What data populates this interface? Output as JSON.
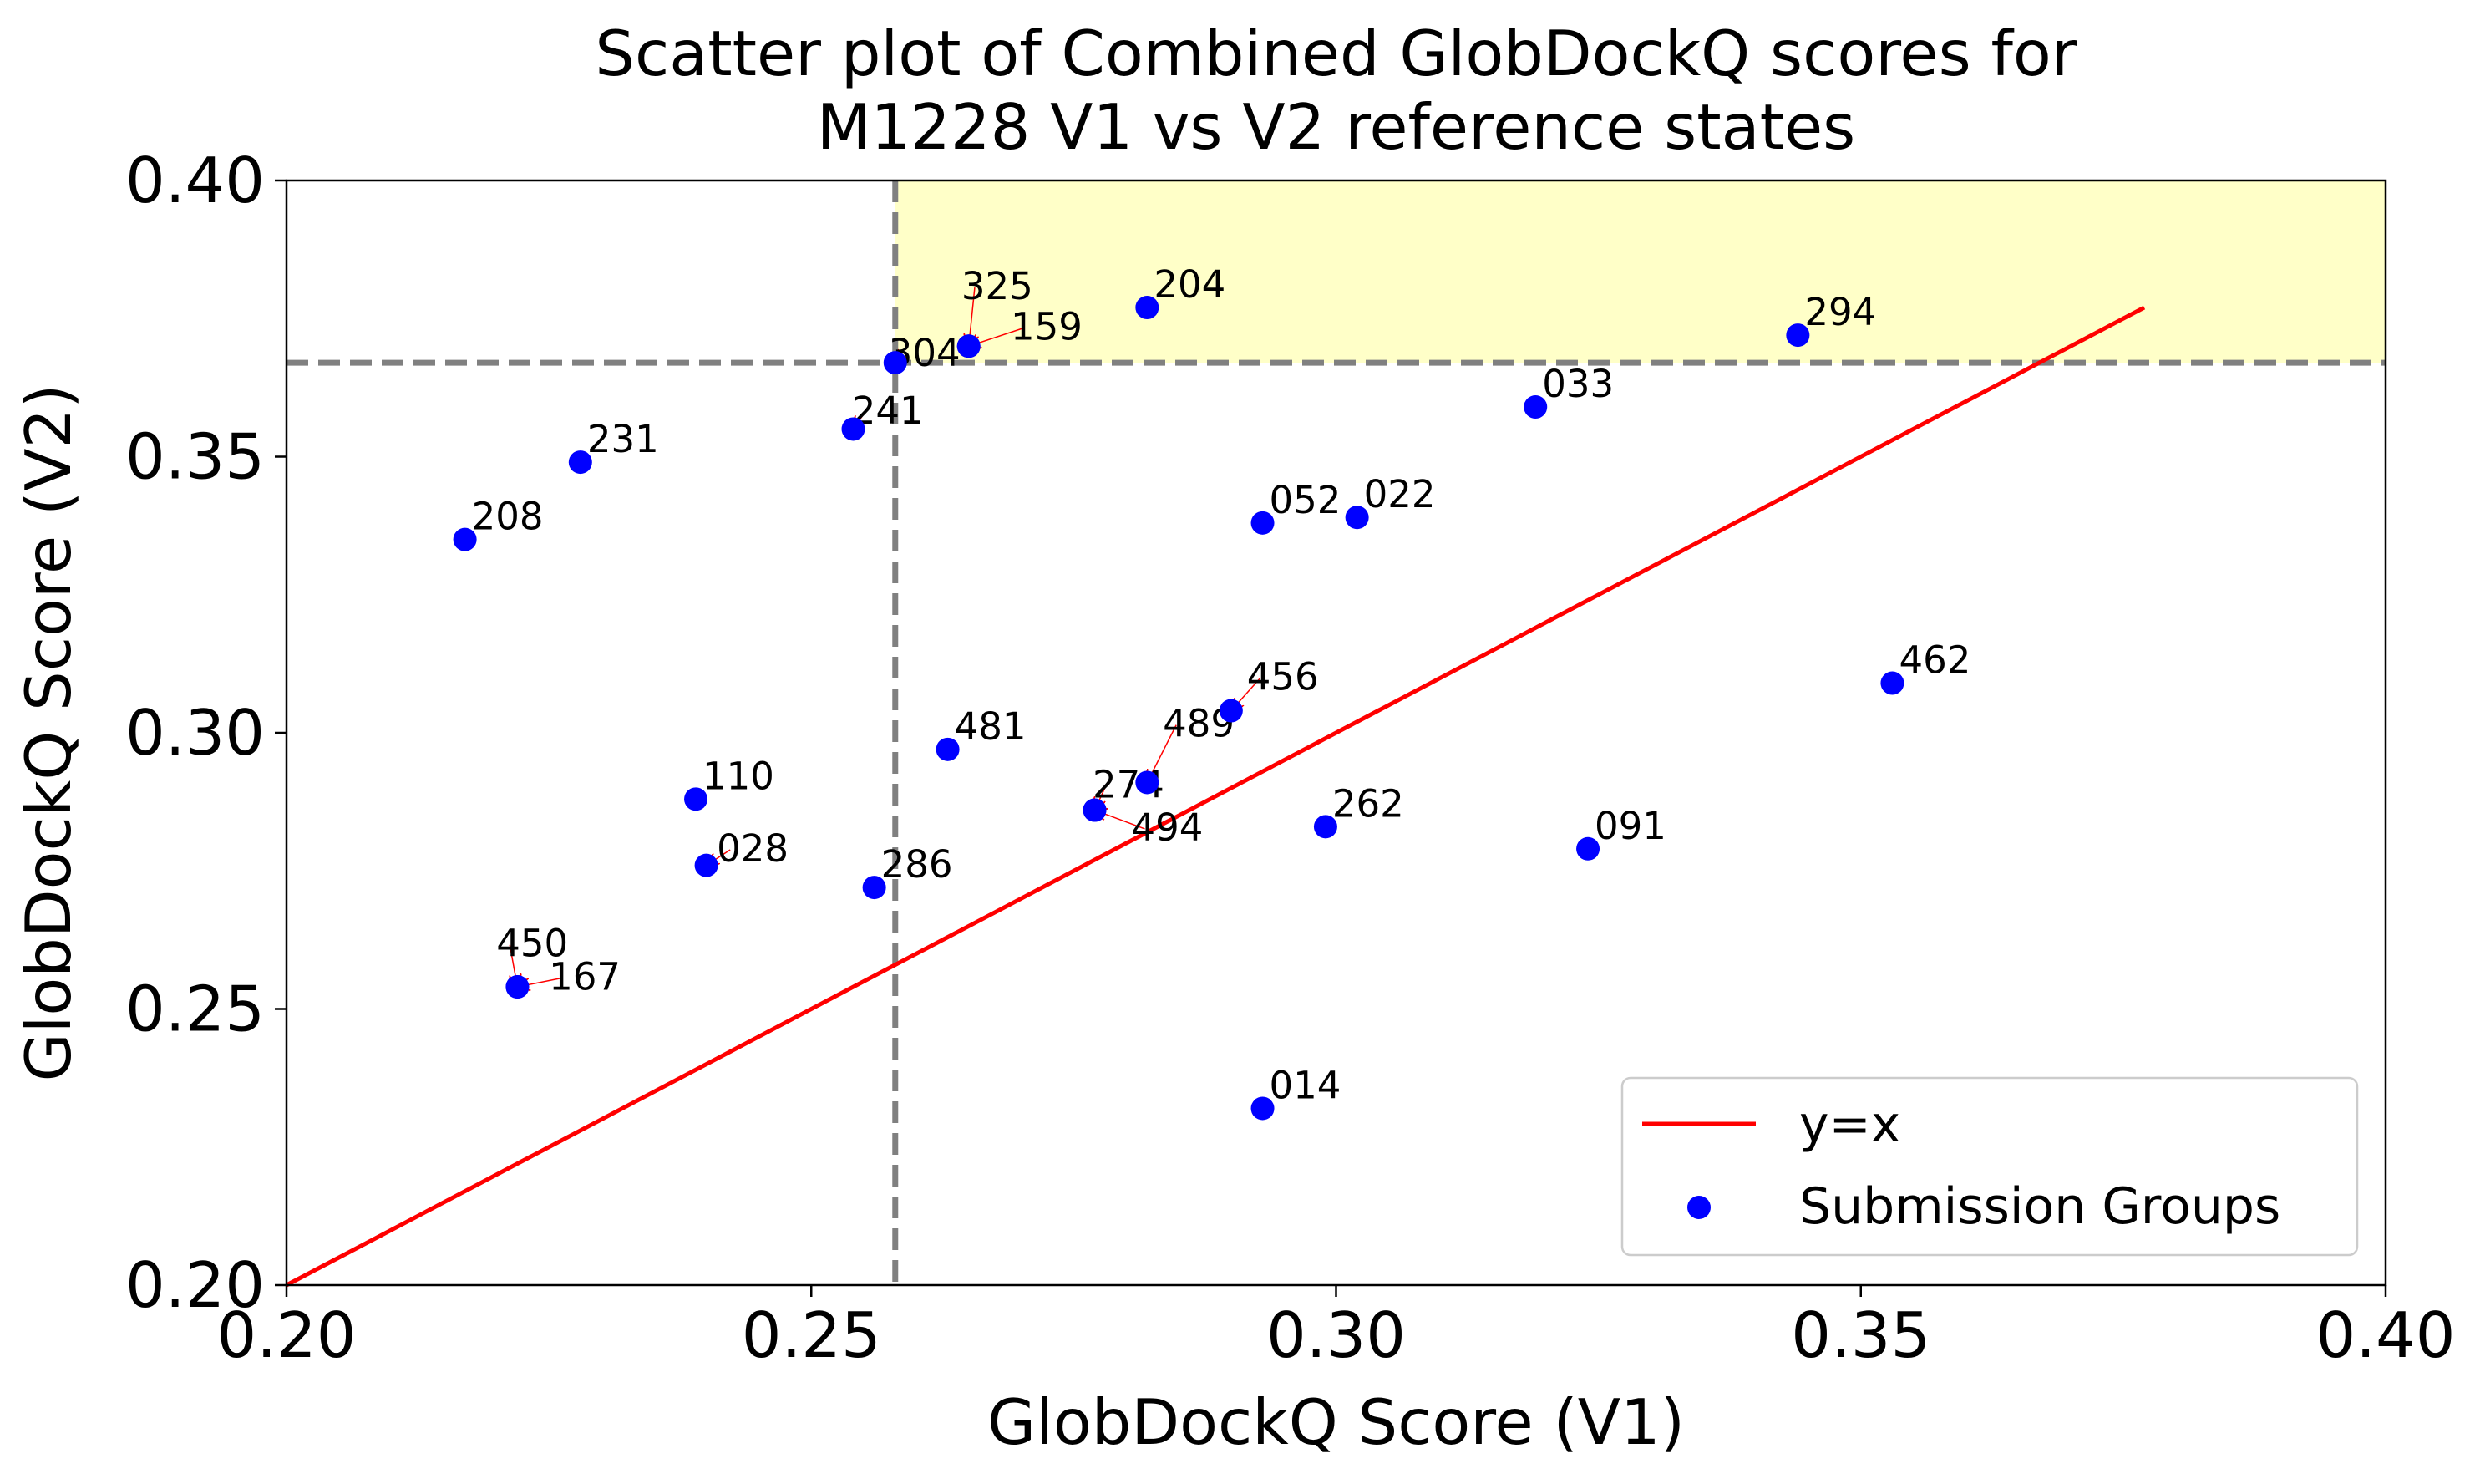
{
  "chart_data": {
    "type": "scatter",
    "title": "Scatter plot of Combined GlobDockQ scores for\nM1228 V1 vs V2 reference states",
    "xlabel": "GlobDockQ Score (V1)",
    "ylabel": "GlobDockQ Score (V2)",
    "xlim": [
      0.2,
      0.4
    ],
    "ylim": [
      0.2,
      0.4
    ],
    "x_ticks": [
      "0.20",
      "0.25",
      "0.30",
      "0.35",
      "0.40"
    ],
    "y_ticks": [
      "0.20",
      "0.25",
      "0.30",
      "0.35",
      "0.40"
    ],
    "grid": false,
    "legend_position": "lower-right",
    "reference_threshold": {
      "x": 0.258,
      "y": 0.367
    },
    "highlight_region": {
      "x_min": 0.258,
      "y_min": 0.367,
      "color": "#ffffc8"
    },
    "threshold_line_color": "#808080",
    "diagonal_line": {
      "name": "y=x",
      "from": 0.2,
      "to": 0.377,
      "color": "#ff0000"
    },
    "series": [
      {
        "name": "Submission Groups",
        "color": "#0000ff",
        "points": [
          {
            "label": "204",
            "x": 0.282,
            "y": 0.377
          },
          {
            "label": "325",
            "x": 0.265,
            "y": 0.37
          },
          {
            "label": "159",
            "x": 0.265,
            "y": 0.37
          },
          {
            "label": "304",
            "x": 0.258,
            "y": 0.367
          },
          {
            "label": "294",
            "x": 0.344,
            "y": 0.372
          },
          {
            "label": "033",
            "x": 0.319,
            "y": 0.359
          },
          {
            "label": "241",
            "x": 0.254,
            "y": 0.355
          },
          {
            "label": "231",
            "x": 0.228,
            "y": 0.349
          },
          {
            "label": "208",
            "x": 0.217,
            "y": 0.335
          },
          {
            "label": "052",
            "x": 0.293,
            "y": 0.338
          },
          {
            "label": "022",
            "x": 0.302,
            "y": 0.339
          },
          {
            "label": "462",
            "x": 0.353,
            "y": 0.309
          },
          {
            "label": "456",
            "x": 0.29,
            "y": 0.304
          },
          {
            "label": "481",
            "x": 0.263,
            "y": 0.297
          },
          {
            "label": "489",
            "x": 0.282,
            "y": 0.291
          },
          {
            "label": "274",
            "x": 0.277,
            "y": 0.286
          },
          {
            "label": "494",
            "x": 0.277,
            "y": 0.286
          },
          {
            "label": "110",
            "x": 0.239,
            "y": 0.288
          },
          {
            "label": "262",
            "x": 0.299,
            "y": 0.283
          },
          {
            "label": "091",
            "x": 0.324,
            "y": 0.279
          },
          {
            "label": "028",
            "x": 0.24,
            "y": 0.276
          },
          {
            "label": "286",
            "x": 0.256,
            "y": 0.272
          },
          {
            "label": "450",
            "x": 0.222,
            "y": 0.254
          },
          {
            "label": "167",
            "x": 0.222,
            "y": 0.254
          },
          {
            "label": "014",
            "x": 0.293,
            "y": 0.232
          }
        ]
      }
    ],
    "legend": [
      {
        "label": "y=x",
        "kind": "line",
        "color": "#ff0000"
      },
      {
        "label": "Submission Groups",
        "kind": "marker",
        "color": "#0000ff"
      }
    ]
  }
}
